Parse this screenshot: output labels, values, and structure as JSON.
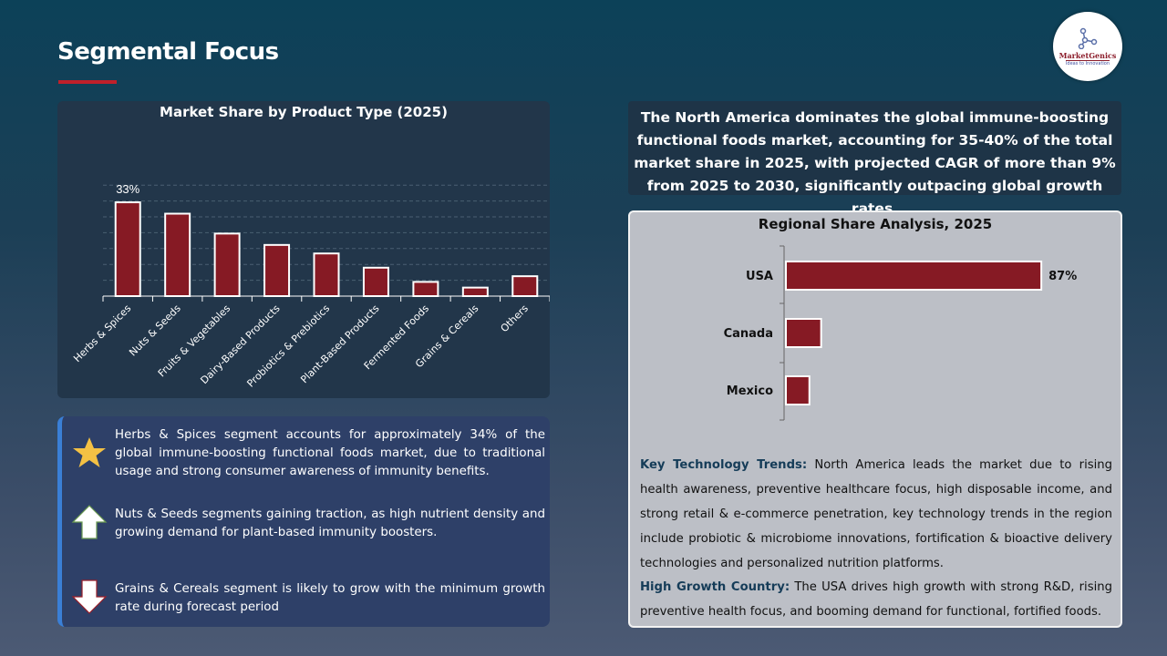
{
  "title": "Segmental Focus",
  "logo": {
    "name": "MarketGenics",
    "tagline": "Ideas to Innovation"
  },
  "chart_data": [
    {
      "type": "bar",
      "title": "Market Share by Product Type (2025)",
      "categories": [
        "Herbs & Spices",
        "Nuts & Seeds",
        "Fruits & Vegetables",
        "Dairy-Based Products",
        "Probiotics & Prebiotics",
        "Plant-Based Products",
        "Fermented Foods",
        "Grains & Cereals",
        "Others"
      ],
      "values": [
        33,
        29,
        22,
        18,
        15,
        10,
        5,
        3,
        7
      ],
      "data_labels": [
        "33%",
        "",
        "",
        "",
        "",
        "",
        "",
        "",
        ""
      ],
      "unit": "%",
      "grid": true,
      "bar_color": "#861a24"
    },
    {
      "type": "bar",
      "orientation": "horizontal",
      "title": "Regional Share Analysis, 2025",
      "categories": [
        "USA",
        "Canada",
        "Mexico"
      ],
      "values": [
        87,
        12,
        8
      ],
      "data_labels": [
        "87%",
        "",
        ""
      ],
      "unit": "%",
      "bar_color": "#861a24"
    }
  ],
  "notes": [
    {
      "icon": "star-icon",
      "text": "Herbs & Spices segment accounts for approximately 34% of the global immune-boosting functional foods market, due to traditional usage and strong consumer awareness of immunity benefits."
    },
    {
      "icon": "arrow-up-icon",
      "text": "Nuts & Seeds segments gaining traction, as high nutrient density and growing demand for plant-based immunity boosters."
    },
    {
      "icon": "arrow-down-icon",
      "text": "Grains & Cereals segment is likely to grow with the minimum growth rate during forecast period"
    }
  ],
  "summary": "The North America dominates the global immune-boosting functional foods market, accounting for 35-40% of the total market share in 2025, with projected CAGR of more than 9% from 2025 to 2030, significantly outpacing global growth rates.",
  "trends": {
    "label": "Key Technology Trends:",
    "text": " North America leads the market due to rising health awareness, preventive healthcare focus, high disposable income, and strong retail & e-commerce penetration, key technology trends in the region include probiotic & microbiome innovations, fortification & bioactive delivery technologies and personalized nutrition platforms."
  },
  "growth": {
    "label": "High Growth Country:",
    "text": " The USA drives high growth with strong R&D, rising preventive health focus, and booming demand for functional, fortified foods."
  }
}
